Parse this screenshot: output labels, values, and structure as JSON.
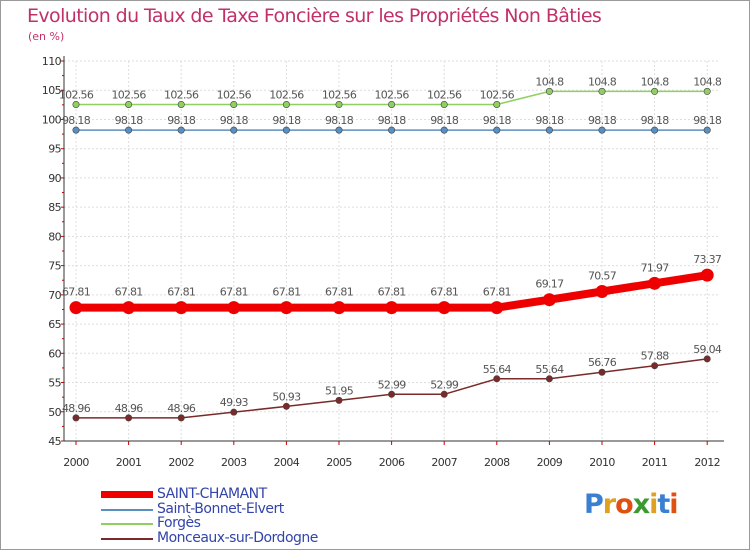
{
  "chart_data": {
    "type": "line",
    "title": "Evolution du Taux de Taxe Foncière sur les Propriétés Non Bâties",
    "ylabel": "(en %)",
    "xlabel": "",
    "ylim": [
      45,
      110
    ],
    "yticks": [
      "45",
      "50",
      "55",
      "60",
      "65",
      "70",
      "75",
      "80",
      "85",
      "90",
      "95",
      "100",
      "105",
      "110"
    ],
    "categories": [
      "2000",
      "2001",
      "2002",
      "2003",
      "2004",
      "2005",
      "2006",
      "2007",
      "2008",
      "2009",
      "2010",
      "2011",
      "2012"
    ],
    "series": [
      {
        "name": "SAINT-CHAMANT",
        "color": "#ee0000",
        "values": [
          67.81,
          67.81,
          67.81,
          67.81,
          67.81,
          67.81,
          67.81,
          67.81,
          67.81,
          69.17,
          70.57,
          71.97,
          73.37
        ],
        "labels": [
          "67.81",
          "67.81",
          "67.81",
          "67.81",
          "67.81",
          "67.81",
          "67.81",
          "67.81",
          "67.81",
          "69.17",
          "70.57",
          "71.97",
          "73.37"
        ]
      },
      {
        "name": "Saint-Bonnet-Elvert",
        "color": "#5b8fc0",
        "values": [
          98.18,
          98.18,
          98.18,
          98.18,
          98.18,
          98.18,
          98.18,
          98.18,
          98.18,
          98.18,
          98.18,
          98.18,
          98.18
        ],
        "labels": [
          "98.18",
          "98.18",
          "98.18",
          "98.18",
          "98.18",
          "98.18",
          "98.18",
          "98.18",
          "98.18",
          "98.18",
          "98.18",
          "98.18",
          "98.18"
        ]
      },
      {
        "name": "Forgès",
        "color": "#90d060",
        "values": [
          102.56,
          102.56,
          102.56,
          102.56,
          102.56,
          102.56,
          102.56,
          102.56,
          102.56,
          104.8,
          104.8,
          104.8,
          104.8
        ],
        "labels": [
          "102.56",
          "102.56",
          "102.56",
          "102.56",
          "102.56",
          "102.56",
          "102.56",
          "102.56",
          "102.56",
          "104.8",
          "104.8",
          "104.8",
          "104.8"
        ]
      },
      {
        "name": "Monceaux-sur-Dordogne",
        "color": "#7a2a2a",
        "values": [
          48.96,
          48.96,
          48.96,
          49.93,
          50.93,
          51.95,
          52.99,
          52.99,
          55.64,
          55.64,
          56.76,
          57.88,
          59.04
        ],
        "labels": [
          "48.96",
          "48.96",
          "48.96",
          "49.93",
          "50.93",
          "51.95",
          "52.99",
          "52.99",
          "55.64",
          "55.64",
          "56.76",
          "57.88",
          "59.04"
        ]
      }
    ]
  },
  "legend": {
    "items": [
      "SAINT-CHAMANT",
      "Saint-Bonnet-Elvert",
      "Forgès",
      "Monceaux-sur-Dordogne"
    ]
  },
  "logo": {
    "letters": [
      "P",
      "r",
      "o",
      "x",
      "i",
      "t",
      "i"
    ],
    "colors": [
      "#3a7fd0",
      "#e0a020",
      "#e05010",
      "#3a9a30",
      "#e0a020",
      "#3a7fd0",
      "#e05010"
    ]
  }
}
